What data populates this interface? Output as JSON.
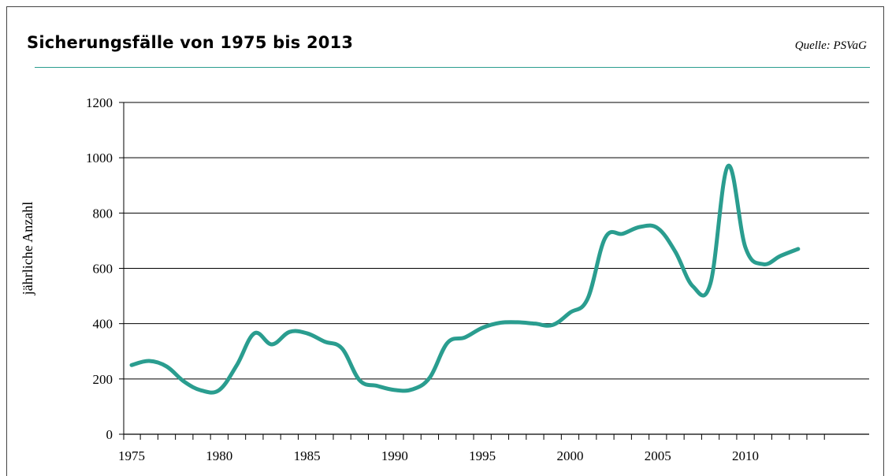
{
  "header": {
    "title": "Sicherungsfälle von 1975 bis 2013",
    "source": "Quelle: PSVaG"
  },
  "colors": {
    "line": "#2a9d8f",
    "rule": "#2a9d8f",
    "grid": "#000000"
  },
  "chart_data": {
    "type": "line",
    "title": "Sicherungsfälle von 1975 bis 2013",
    "xlabel": "",
    "ylabel": "jährliche Anzahl",
    "ylim": [
      0,
      1200
    ],
    "xlim": [
      1975,
      2013
    ],
    "yticks": [
      0,
      200,
      400,
      600,
      800,
      1000,
      1200
    ],
    "xticks": [
      1975,
      1980,
      1985,
      1990,
      1995,
      2000,
      2005,
      2010
    ],
    "grid": true,
    "x": [
      1975,
      1976,
      1977,
      1978,
      1979,
      1980,
      1981,
      1982,
      1983,
      1984,
      1985,
      1986,
      1987,
      1988,
      1989,
      1990,
      1991,
      1992,
      1993,
      1994,
      1995,
      1996,
      1997,
      1998,
      1999,
      2000,
      2001,
      2002,
      2003,
      2004,
      2005,
      2006,
      2007,
      2008,
      2009,
      2010,
      2011,
      2012,
      2013
    ],
    "series": [
      {
        "values": [
          250,
          265,
          245,
          190,
          158,
          160,
          250,
          365,
          325,
          370,
          365,
          335,
          310,
          195,
          175,
          160,
          162,
          205,
          330,
          350,
          385,
          403,
          405,
          400,
          395,
          440,
          490,
          710,
          725,
          750,
          745,
          660,
          535,
          545,
          970,
          675,
          615,
          645,
          670
        ]
      }
    ]
  }
}
